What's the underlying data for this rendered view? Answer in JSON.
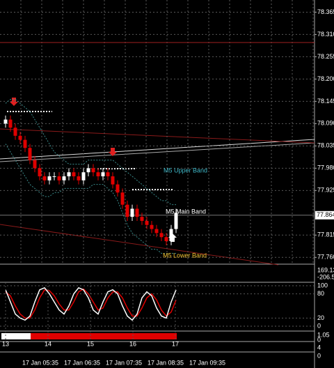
{
  "chart_data": {
    "type": "candlestick",
    "up_color": "#ffffff",
    "down_color": "#e00000",
    "band_color": "#3a8a8a",
    "ylim": [
      77.745,
      78.395
    ],
    "yticks": [
      78.365,
      {
        "value": 78.31,
        "label": "78.310"
      },
      78.255,
      {
        "value": 78.2,
        "label": "78.200"
      },
      78.145,
      {
        "value": 78.09,
        "label": "78.090"
      },
      78.035,
      {
        "value": 77.98,
        "label": "77.980"
      },
      77.925,
      77.815,
      {
        "value": 77.76,
        "label": "77.760"
      }
    ],
    "grid": true,
    "current_price": 77.864,
    "resistance": 78.29,
    "open": [
      78.09,
      78.1,
      78.08,
      78.06,
      78.05,
      78.03,
      78.0,
      77.98,
      77.96,
      77.95,
      77.96,
      77.96,
      77.95,
      77.96,
      77.97,
      77.96,
      77.95,
      77.97,
      77.98,
      77.97,
      77.96,
      77.97,
      77.96,
      77.94,
      77.92,
      77.89,
      77.86,
      77.88,
      77.86,
      77.85,
      77.84,
      77.83,
      77.82,
      77.81,
      77.8,
      77.83
    ],
    "high": [
      78.11,
      78.11,
      78.09,
      78.07,
      78.06,
      78.04,
      78.01,
      77.99,
      77.97,
      77.97,
      77.97,
      77.97,
      77.97,
      77.98,
      77.98,
      77.97,
      77.98,
      77.99,
      77.99,
      77.98,
      77.98,
      77.98,
      77.97,
      77.95,
      77.93,
      77.9,
      77.89,
      77.89,
      77.87,
      77.86,
      77.85,
      77.84,
      77.83,
      77.82,
      77.84,
      77.88
    ],
    "low": [
      78.08,
      78.07,
      78.05,
      78.04,
      78.02,
      77.99,
      77.97,
      77.95,
      77.94,
      77.94,
      77.95,
      77.94,
      77.94,
      77.95,
      77.95,
      77.94,
      77.94,
      77.96,
      77.96,
      77.95,
      77.95,
      77.95,
      77.93,
      77.91,
      77.88,
      77.85,
      77.85,
      77.85,
      77.84,
      77.83,
      77.82,
      77.81,
      77.8,
      77.79,
      77.79,
      77.82
    ],
    "close": [
      78.1,
      78.08,
      78.06,
      78.05,
      78.03,
      78.0,
      77.98,
      77.96,
      77.95,
      77.96,
      77.96,
      77.95,
      77.96,
      77.97,
      77.96,
      77.95,
      77.97,
      77.98,
      77.97,
      77.96,
      77.97,
      77.96,
      77.94,
      77.92,
      77.89,
      77.86,
      77.88,
      77.86,
      77.85,
      77.84,
      77.83,
      77.82,
      77.81,
      77.8,
      77.83,
      77.87
    ],
    "bands": [
      {
        "name": "M5 Upper Band",
        "color": "#3fb8c8",
        "values": [
          78.14,
          78.15,
          78.15,
          78.14,
          78.13,
          78.12,
          78.1,
          78.08,
          78.06,
          78.04,
          78.02,
          78.01,
          78.0,
          77.99,
          77.99,
          77.99,
          77.99,
          78.0,
          78.0,
          78.0,
          78.0,
          78.0,
          78.0,
          77.99,
          77.98,
          77.97,
          77.96,
          77.95,
          77.94,
          77.93,
          77.92,
          77.91,
          77.9,
          77.9,
          77.89,
          77.89
        ]
      },
      {
        "name": "M5 Main Band",
        "color": "#ffffff"
      },
      {
        "name": "M5 Lower Band",
        "color": "#f0c030",
        "values": [
          78.04,
          78.02,
          78.0,
          77.98,
          77.96,
          77.94,
          77.93,
          77.92,
          77.91,
          77.91,
          77.92,
          77.92,
          77.93,
          77.93,
          77.93,
          77.93,
          77.93,
          77.93,
          77.94,
          77.94,
          77.94,
          77.93,
          77.92,
          77.9,
          77.87,
          77.84,
          77.82,
          77.81,
          77.8,
          77.79,
          77.78,
          77.78,
          77.77,
          77.77,
          77.77,
          77.77
        ]
      }
    ],
    "cci": {
      "yticks": [
        169.13,
        -206.5
      ]
    },
    "stochastic": {
      "ylim": [
        0,
        100
      ],
      "yticks": [
        100,
        80,
        20,
        0
      ],
      "series": [
        {
          "color": "#ffffff",
          "values": [
            90,
            60,
            30,
            20,
            15,
            25,
            60,
            90,
            95,
            80,
            60,
            40,
            30,
            50,
            80,
            95,
            90,
            70,
            40,
            30,
            60,
            85,
            90,
            80,
            50,
            25,
            15,
            30,
            70,
            85,
            75,
            45,
            25,
            20,
            60,
            90
          ]
        },
        {
          "color": "#e00000",
          "values": [
            85,
            75,
            50,
            30,
            20,
            20,
            40,
            70,
            90,
            88,
            75,
            55,
            40,
            40,
            60,
            85,
            92,
            80,
            60,
            40,
            45,
            70,
            85,
            85,
            70,
            45,
            25,
            25,
            45,
            70,
            80,
            65,
            40,
            25,
            35,
            65
          ]
        }
      ]
    },
    "strength": {
      "yticks": [
        1.05,
        0
      ]
    },
    "volume": {
      "yticks": [
        4,
        0
      ]
    },
    "day_labels": [
      "13",
      "14",
      "15",
      "16",
      "17"
    ],
    "time_labels": [
      "17 Jan 05:35",
      "17 Jan 06:35",
      "17 Jan 07:35",
      "17 Jan 08:35",
      "17 Jan 09:35"
    ]
  }
}
